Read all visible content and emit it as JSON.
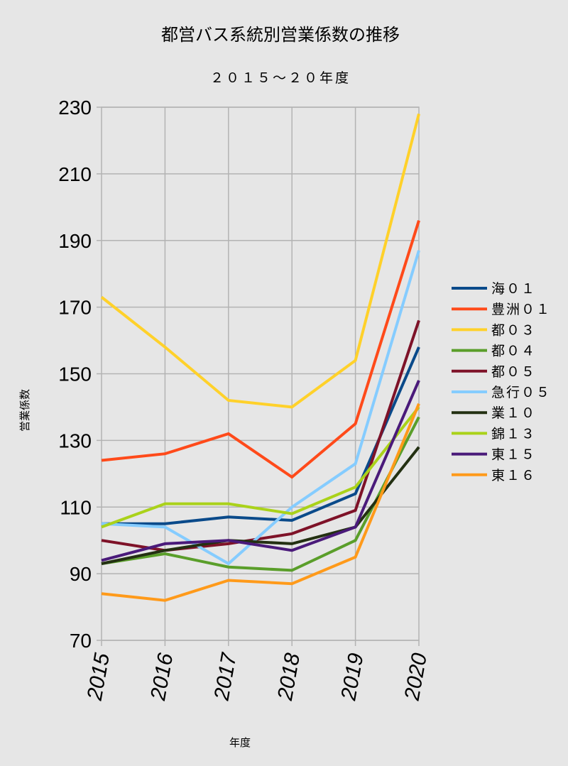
{
  "chart_data": {
    "type": "line",
    "title": "都営バス系統別営業係数の推移",
    "subtitle": "２０１５〜２０年度",
    "xlabel": "年度",
    "ylabel": "営業係数",
    "x": [
      "2015",
      "2016",
      "2017",
      "2018",
      "2019",
      "2020"
    ],
    "ylim": [
      70,
      230
    ],
    "yticks": [
      70,
      90,
      110,
      130,
      150,
      170,
      190,
      210,
      230
    ],
    "grid": true,
    "legend_position": "right",
    "series": [
      {
        "name": "海０１",
        "color": "#0a4a8a",
        "values": [
          105,
          105,
          107,
          106,
          114,
          158
        ]
      },
      {
        "name": "豊洲０１",
        "color": "#ff4a1a",
        "values": [
          124,
          126,
          132,
          119,
          135,
          196
        ]
      },
      {
        "name": "都０３",
        "color": "#ffd12a",
        "values": [
          173,
          158,
          142,
          140,
          154,
          228
        ]
      },
      {
        "name": "都０４",
        "color": "#5a9e2a",
        "values": [
          93,
          96,
          92,
          91,
          100,
          137
        ]
      },
      {
        "name": "都０５",
        "color": "#7e1228",
        "values": [
          100,
          97,
          99,
          102,
          109,
          166
        ]
      },
      {
        "name": "急行０５",
        "color": "#85ccff",
        "values": [
          105,
          104,
          93,
          110,
          123,
          187
        ]
      },
      {
        "name": "業１０",
        "color": "#233012",
        "values": [
          93,
          97,
          100,
          99,
          104,
          128
        ]
      },
      {
        "name": "錦１３",
        "color": "#aad21a",
        "values": [
          104,
          111,
          111,
          108,
          116,
          140
        ]
      },
      {
        "name": "東１５",
        "color": "#4a1a7a",
        "values": [
          94,
          99,
          100,
          97,
          104,
          148
        ]
      },
      {
        "name": "東１６",
        "color": "#ff9a1a",
        "values": [
          84,
          82,
          88,
          87,
          95,
          141
        ]
      }
    ]
  }
}
